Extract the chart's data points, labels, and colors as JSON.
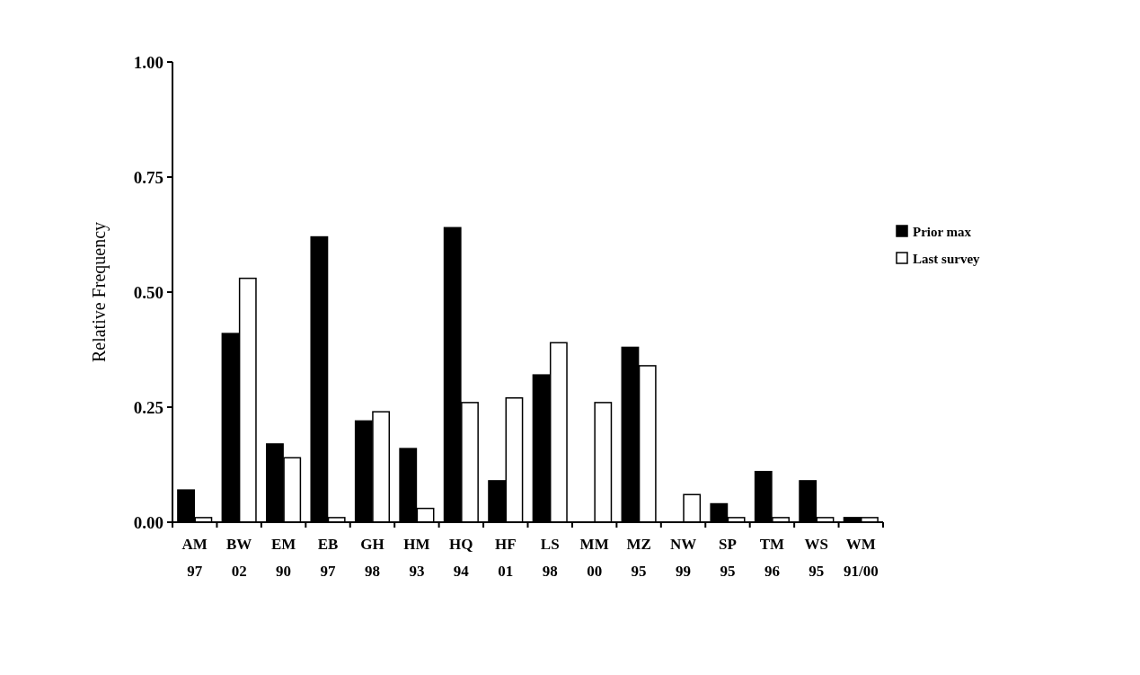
{
  "chart_data": {
    "type": "bar",
    "ylabel": "Relative Frequency",
    "categories": [
      "AM 97",
      "BW 02",
      "EM 90",
      "EB 97",
      "GH 98",
      "HM 93",
      "HQ 94",
      "HF 01",
      "LS 98",
      "MM 00",
      "MZ 95",
      "NW 99",
      "SP 95",
      "TM 96",
      "WS 95",
      "WM 91/00"
    ],
    "series": [
      {
        "name": "Prior max",
        "color": "#000000",
        "values": [
          0.07,
          0.41,
          0.17,
          0.62,
          0.22,
          0.16,
          0.64,
          0.09,
          0.32,
          0,
          0.38,
          0,
          0.04,
          0.11,
          0.09,
          0.01
        ]
      },
      {
        "name": "Last survey",
        "color": "#ffffff",
        "values": [
          0.01,
          0.53,
          0.14,
          0.01,
          0.24,
          0.03,
          0.26,
          0.27,
          0.39,
          0.26,
          0.34,
          0.06,
          0.01,
          0.01,
          0.01,
          0.01
        ]
      }
    ],
    "ylim": [
      0,
      1
    ],
    "yticks": [
      {
        "value": 0,
        "label": "0.00"
      },
      {
        "value": 0.25,
        "label": "0.25"
      },
      {
        "value": 0.5,
        "label": "0.50"
      },
      {
        "value": 0.75,
        "label": "0.75"
      },
      {
        "value": 1,
        "label": "1.00"
      }
    ],
    "legend": "right"
  }
}
